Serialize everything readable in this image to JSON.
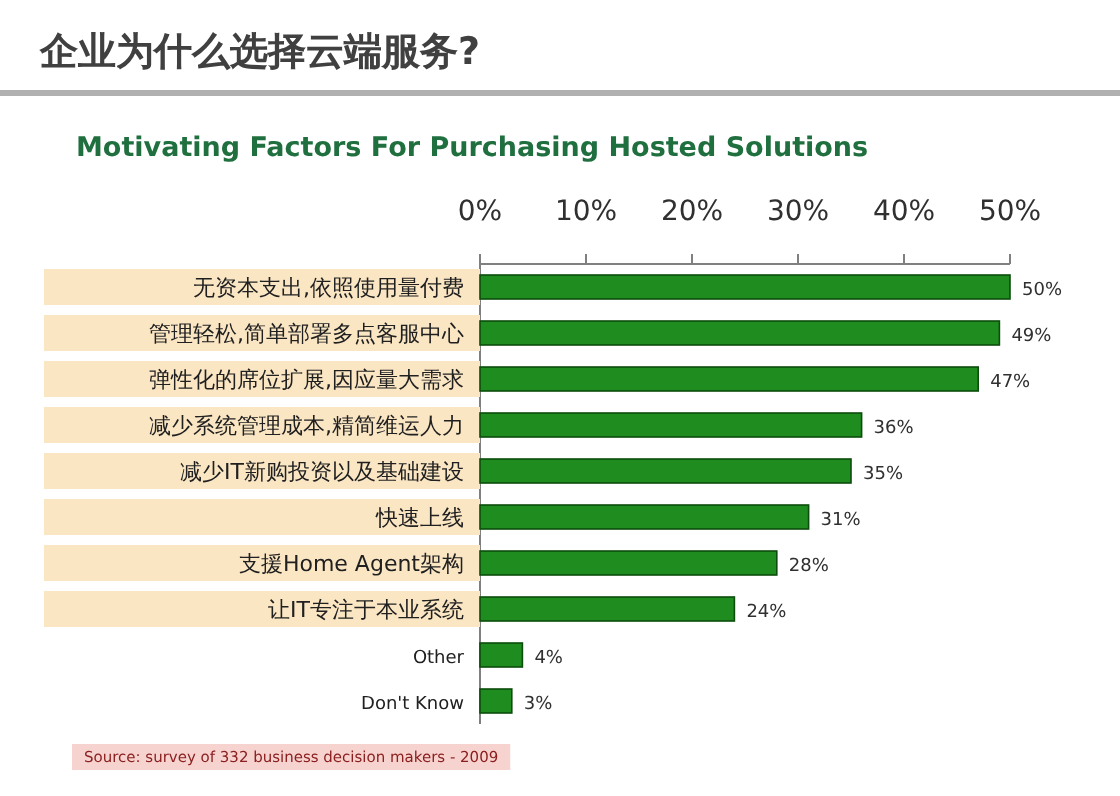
{
  "chart_data": {
    "type": "bar",
    "orientation": "horizontal",
    "title": "企业为什么选择云端服务?",
    "subtitle": "Motivating Factors For Purchasing Hosted Solutions",
    "categories": [
      "无资本支出,依照使用量付费",
      "管理轻松,简单部署多点客服中心",
      "弹性化的席位扩展,因应量大需求",
      "减少系统管理成本,精简维运人力",
      "减少IT新购投资以及基础建设",
      "快速上线",
      "支援Home Agent架构",
      "让IT专注于本业系统",
      "Other",
      "Don't Know"
    ],
    "values": [
      50,
      49,
      47,
      36,
      35,
      31,
      28,
      24,
      4,
      3
    ],
    "color": "#1e8c1e",
    "data_labels": true,
    "value_labels": [
      "50%",
      "49%",
      "47%",
      "36%",
      "35%",
      "31%",
      "28%",
      "24%",
      "4%",
      "3%"
    ],
    "xlim": [
      0,
      50
    ],
    "xticks": [
      {
        "value": 0,
        "label": "0%"
      },
      {
        "value": 10,
        "label": "10%"
      },
      {
        "value": 20,
        "label": "20%"
      },
      {
        "value": 30,
        "label": "30%"
      },
      {
        "value": 40,
        "label": "40%"
      },
      {
        "value": 50,
        "label": "50%"
      }
    ],
    "annotations": [
      "Source: survey of 332 business decision makers - 2009"
    ]
  }
}
